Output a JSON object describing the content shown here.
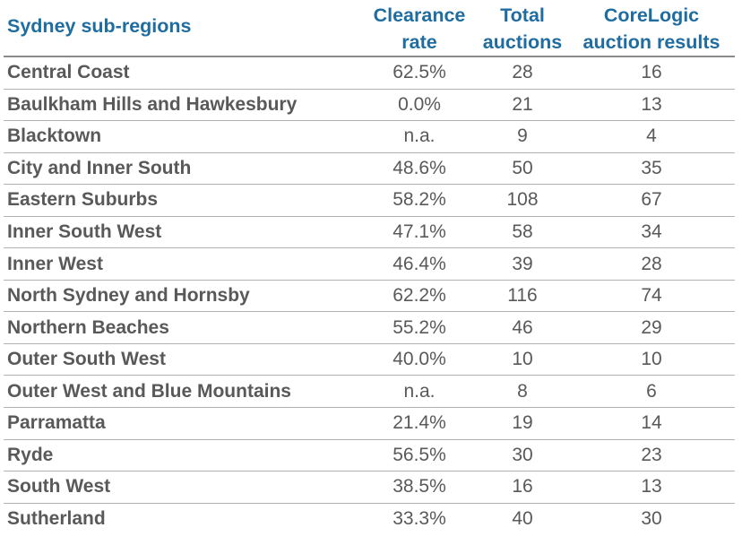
{
  "header": {
    "region": "Sydney sub-regions",
    "clearance_line1": "Clearance",
    "clearance_line2": "rate",
    "total_line1": "Total",
    "total_line2": "auctions",
    "corelogic_line1": "CoreLogic",
    "corelogic_line2": "auction results"
  },
  "colors": {
    "header_text": "#1f6da0",
    "body_text": "#595959",
    "rule": "#b3b3b3"
  },
  "rows": [
    {
      "region": "Central Coast",
      "clearance": "62.5%",
      "total": "28",
      "results": "16"
    },
    {
      "region": "Baulkham Hills and Hawkesbury",
      "clearance": "0.0%",
      "total": "21",
      "results": "13"
    },
    {
      "region": "Blacktown",
      "clearance": "n.a.",
      "total": "9",
      "results": "4"
    },
    {
      "region": "City and Inner South",
      "clearance": "48.6%",
      "total": "50",
      "results": "35"
    },
    {
      "region": "Eastern Suburbs",
      "clearance": "58.2%",
      "total": "108",
      "results": "67"
    },
    {
      "region": "Inner South West",
      "clearance": "47.1%",
      "total": "58",
      "results": "34"
    },
    {
      "region": "Inner West",
      "clearance": "46.4%",
      "total": "39",
      "results": "28"
    },
    {
      "region": "North Sydney and Hornsby",
      "clearance": "62.2%",
      "total": "116",
      "results": "74"
    },
    {
      "region": "Northern Beaches",
      "clearance": "55.2%",
      "total": "46",
      "results": "29"
    },
    {
      "region": "Outer South West",
      "clearance": "40.0%",
      "total": "10",
      "results": "10"
    },
    {
      "region": "Outer West and Blue Mountains",
      "clearance": "n.a.",
      "total": "8",
      "results": "6"
    },
    {
      "region": "Parramatta",
      "clearance": "21.4%",
      "total": "19",
      "results": "14"
    },
    {
      "region": "Ryde",
      "clearance": "56.5%",
      "total": "30",
      "results": "23"
    },
    {
      "region": "South West",
      "clearance": "38.5%",
      "total": "16",
      "results": "13"
    },
    {
      "region": "Sutherland",
      "clearance": "33.3%",
      "total": "40",
      "results": "30"
    }
  ]
}
